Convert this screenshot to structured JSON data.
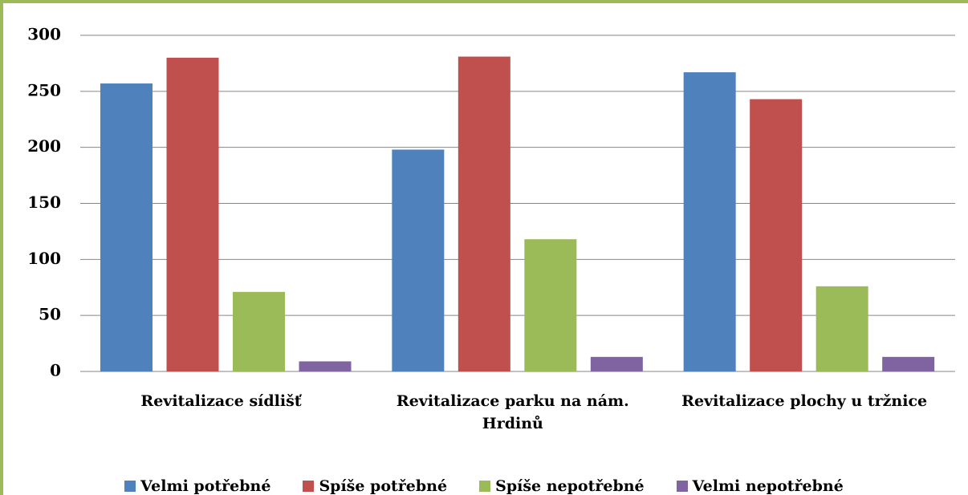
{
  "chart_data": {
    "type": "bar",
    "categories": [
      "Revitalizace sídlišť",
      "Revitalizace parku na nám. Hrdinů",
      "Revitalizace plochy u tržnice"
    ],
    "series": [
      {
        "name": "Velmi potřebné",
        "color": "#4f81bd",
        "values": [
          257,
          198,
          267
        ]
      },
      {
        "name": "Spíše potřebné",
        "color": "#c0504d",
        "values": [
          280,
          281,
          243
        ]
      },
      {
        "name": "Spíše nepotřebné",
        "color": "#9bbb59",
        "values": [
          71,
          118,
          76
        ]
      },
      {
        "name": "Velmi nepotřebné",
        "color": "#8064a2",
        "values": [
          9,
          13,
          13
        ]
      }
    ],
    "ylim": [
      0,
      300
    ],
    "yticks": [
      0,
      50,
      100,
      150,
      200,
      250,
      300
    ],
    "grid": true,
    "legend": "bottom"
  }
}
